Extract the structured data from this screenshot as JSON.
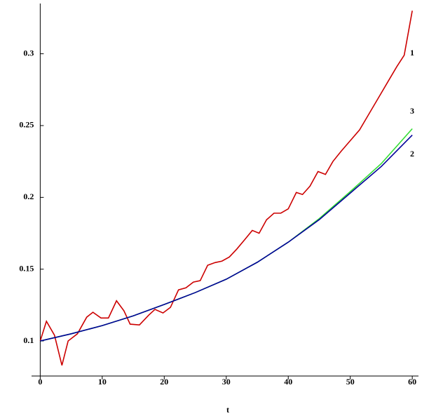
{
  "chart_data": {
    "type": "line",
    "x_label": "t",
    "xlim": [
      -1.4,
      61
    ],
    "ylim": [
      0.0756,
      0.335
    ],
    "xticks": [
      0,
      10,
      20,
      30,
      40,
      50,
      60
    ],
    "yticks": [
      0.1,
      0.15,
      0.2,
      0.25,
      0.3
    ],
    "series": [
      {
        "name": "1",
        "color": "#cc0000",
        "x": [
          0,
          1,
          2.3,
          3.5,
          4.5,
          6,
          7.5,
          8.5,
          9.8,
          11,
          12.3,
          13.5,
          14.5,
          16,
          17.5,
          18.5,
          19.8,
          21,
          22.3,
          23.5,
          24.7,
          25.8,
          27,
          28.2,
          29.3,
          30.5,
          31.7,
          33,
          34.2,
          35.3,
          36.5,
          37.7,
          38.8,
          40,
          41.3,
          42.3,
          43.5,
          44.8,
          46,
          47.2,
          48.5,
          50,
          51.5,
          53,
          54.5,
          56,
          57.5,
          58.7,
          60
        ],
        "values": [
          0.1,
          0.1137,
          0.104,
          0.083,
          0.1,
          0.105,
          0.1166,
          0.12,
          0.116,
          0.116,
          0.128,
          0.121,
          0.1117,
          0.1112,
          0.118,
          0.122,
          0.1195,
          0.1234,
          0.1356,
          0.137,
          0.141,
          0.142,
          0.1527,
          0.1546,
          0.1556,
          0.1585,
          0.164,
          0.1707,
          0.177,
          0.175,
          0.1844,
          0.189,
          0.189,
          0.192,
          0.2034,
          0.202,
          0.2078,
          0.218,
          0.216,
          0.225,
          0.232,
          0.2395,
          0.247,
          0.258,
          0.269,
          0.28,
          0.291,
          0.299,
          0.33
        ]
      },
      {
        "name": "3",
        "color": "#33dd33",
        "x": [
          0,
          5,
          10,
          15,
          20,
          25,
          30,
          35,
          40,
          45,
          50,
          55,
          60
        ],
        "values": [
          0.1,
          0.105,
          0.1107,
          0.1175,
          0.1254,
          0.1337,
          0.143,
          0.1548,
          0.1688,
          0.1852,
          0.204,
          0.2235,
          0.2478
        ]
      },
      {
        "name": "2",
        "color": "#000099",
        "x": [
          0,
          5,
          10,
          15,
          20,
          25,
          30,
          35,
          40,
          45,
          50,
          55,
          60
        ],
        "values": [
          0.1,
          0.105,
          0.1107,
          0.1175,
          0.1254,
          0.1337,
          0.143,
          0.1548,
          0.1688,
          0.1845,
          0.203,
          0.2215,
          0.2434
        ]
      }
    ]
  }
}
